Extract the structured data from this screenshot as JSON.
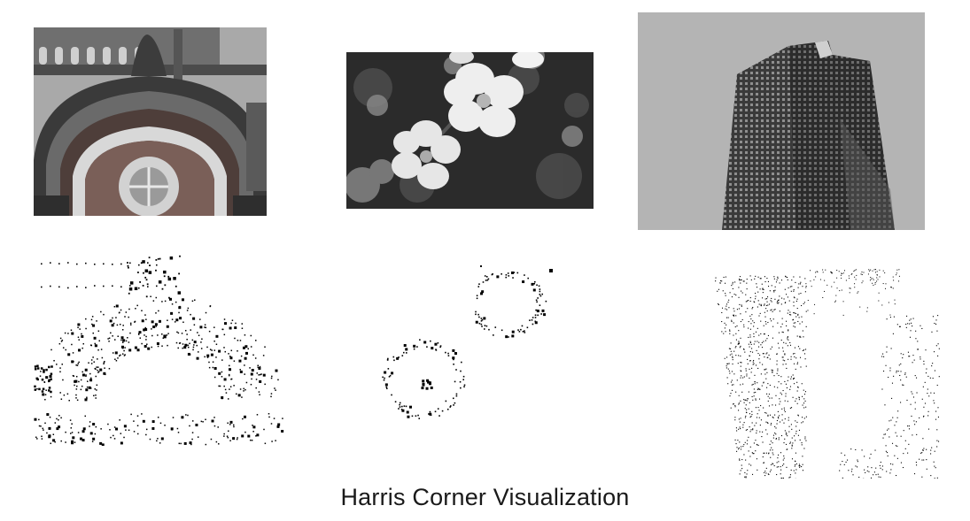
{
  "caption": "Harris Corner Visualization",
  "panels": [
    {
      "id": "station",
      "subject": "arched-building-facade"
    },
    {
      "id": "flowers",
      "subject": "blossoms"
    },
    {
      "id": "tower",
      "subject": "office-tower"
    }
  ]
}
